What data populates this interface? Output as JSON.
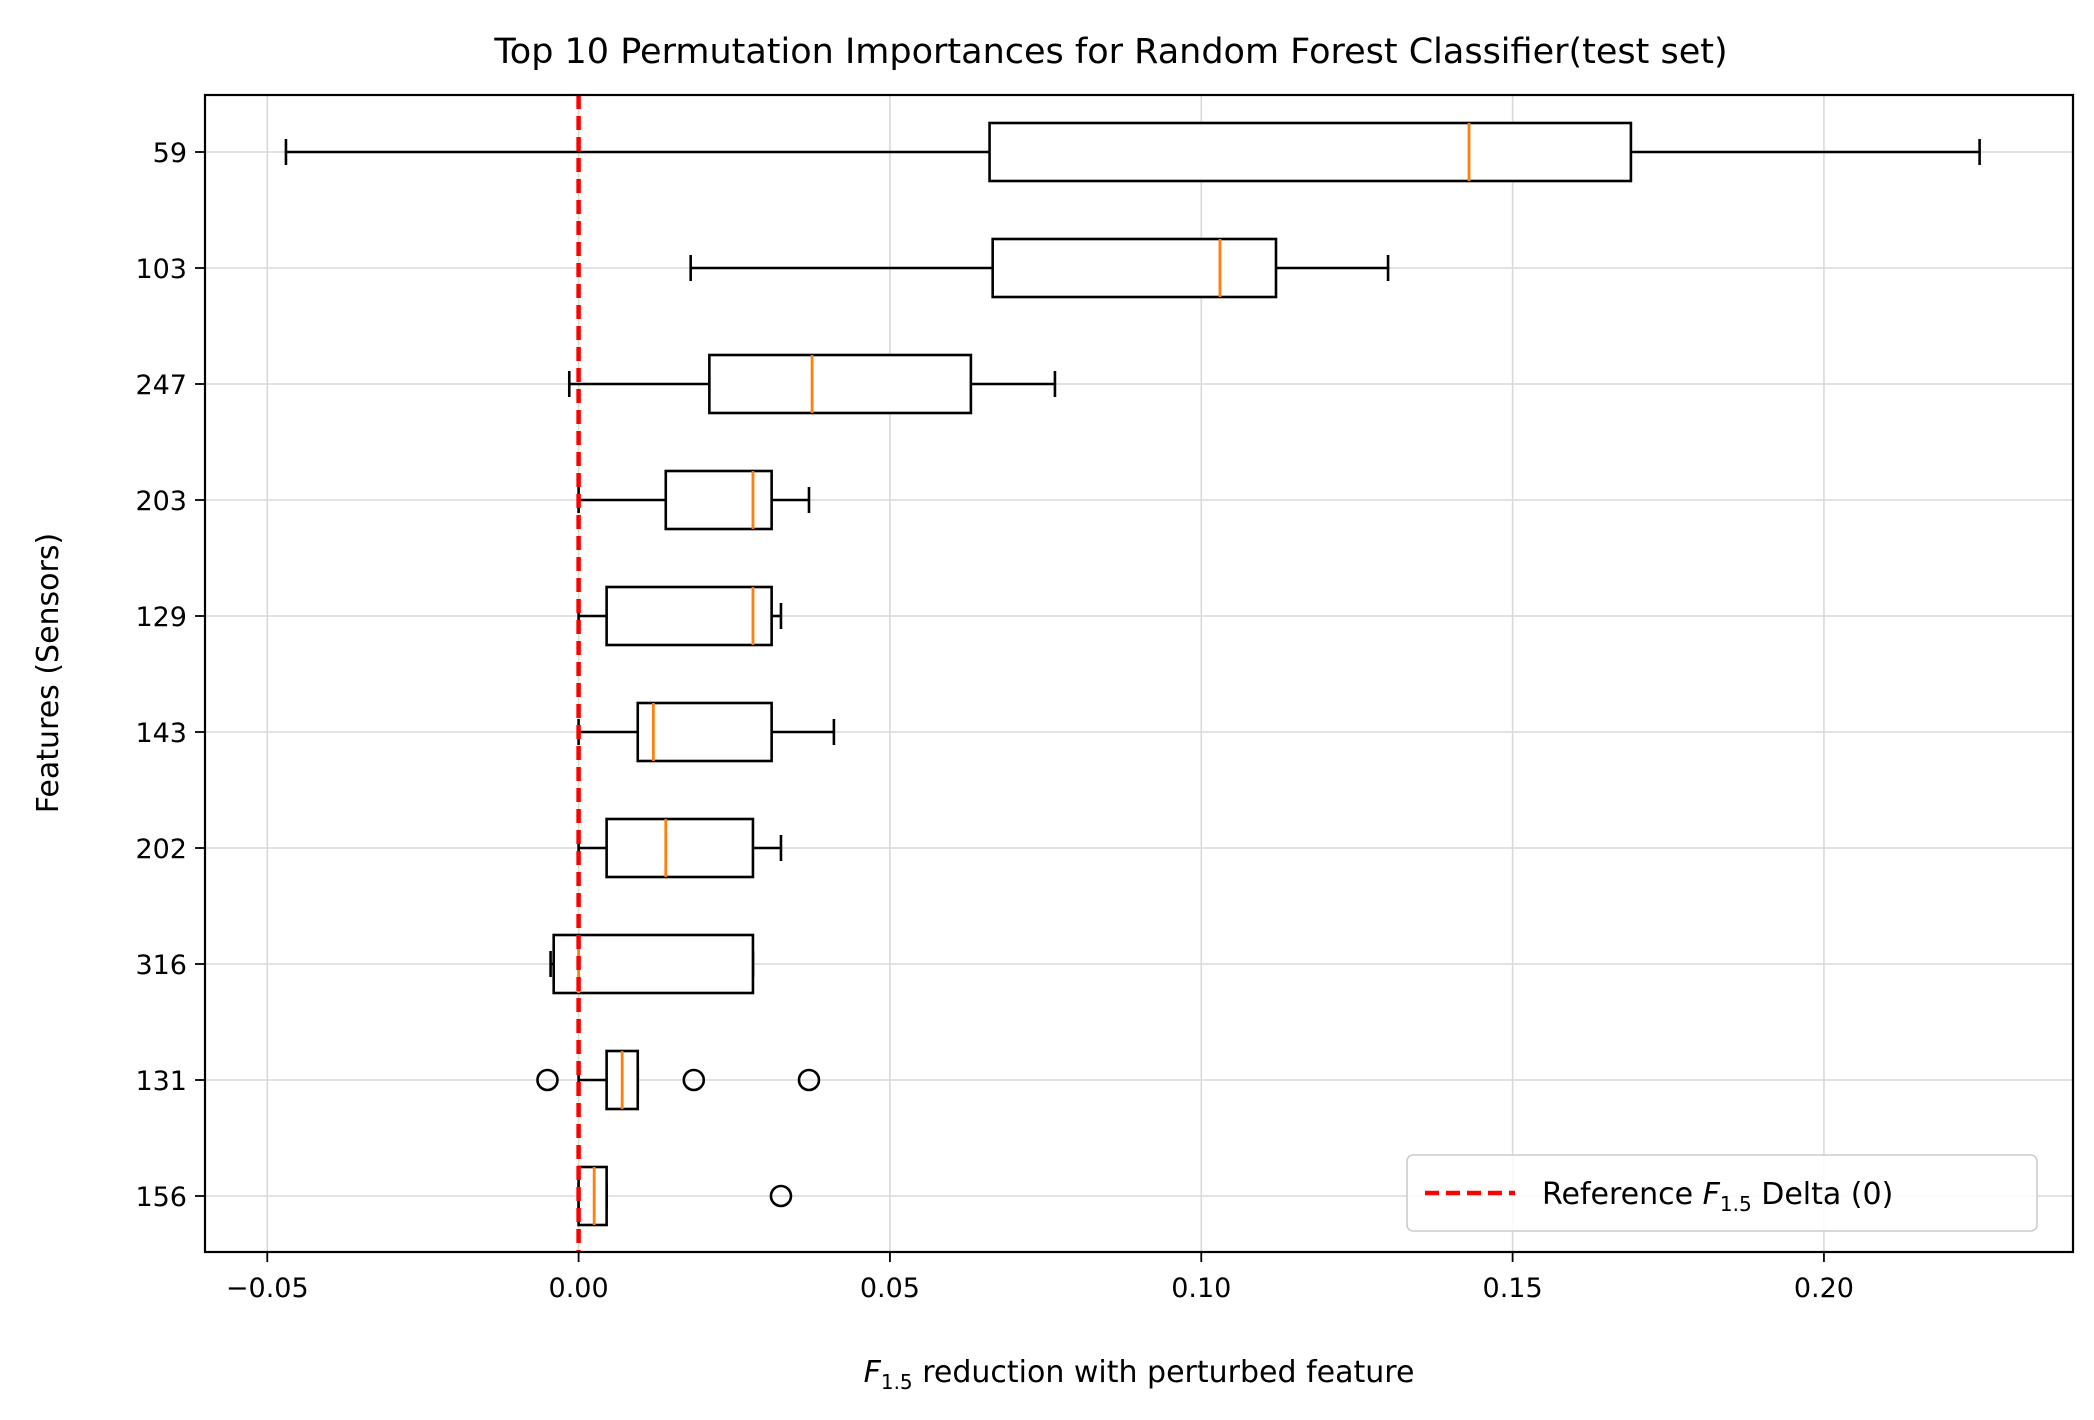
{
  "chart_data": {
    "type": "boxplot",
    "title": "Top 10 Permutation Importances for Random Forest Classifier(test set)",
    "xlabel": {
      "prefix": "F",
      "sub": "1.5",
      "suffix": " reduction with perturbed feature"
    },
    "ylabel": "Features (Sensors)",
    "xlim": [
      -0.06,
      0.24
    ],
    "xticks": [
      -0.05,
      0.0,
      0.05,
      0.1,
      0.15,
      0.2
    ],
    "xtick_labels": [
      "−0.05",
      "0.00",
      "0.05",
      "0.10",
      "0.15",
      "0.20"
    ],
    "grid": true,
    "reference_line": {
      "x": 0,
      "color": "#ff0000",
      "style": "dashed"
    },
    "legend": {
      "position": "lower-right",
      "entry": {
        "prefix": "Reference ",
        "italic": "F",
        "sub": "1.5",
        "suffix": " Delta (0)"
      }
    },
    "categories": [
      "59",
      "103",
      "247",
      "203",
      "129",
      "143",
      "202",
      "316",
      "131",
      "156"
    ],
    "boxes": [
      {
        "label": "59",
        "whislo": -0.047,
        "q1": 0.066,
        "med": 0.143,
        "q3": 0.169,
        "whishi": 0.225,
        "fliers": []
      },
      {
        "label": "103",
        "whislo": 0.018,
        "q1": 0.0665,
        "med": 0.103,
        "q3": 0.112,
        "whishi": 0.13,
        "fliers": []
      },
      {
        "label": "247",
        "whislo": -0.0015,
        "q1": 0.021,
        "med": 0.0375,
        "q3": 0.063,
        "whishi": 0.0765,
        "fliers": []
      },
      {
        "label": "203",
        "whislo": 0.0,
        "q1": 0.014,
        "med": 0.028,
        "q3": 0.031,
        "whishi": 0.037,
        "fliers": []
      },
      {
        "label": "129",
        "whislo": 0.0,
        "q1": 0.0045,
        "med": 0.028,
        "q3": 0.031,
        "whishi": 0.0325,
        "fliers": []
      },
      {
        "label": "143",
        "whislo": 0.0,
        "q1": 0.0095,
        "med": 0.012,
        "q3": 0.031,
        "whishi": 0.041,
        "fliers": []
      },
      {
        "label": "202",
        "whislo": 0.0,
        "q1": 0.0045,
        "med": 0.014,
        "q3": 0.028,
        "whishi": 0.0325,
        "fliers": []
      },
      {
        "label": "316",
        "whislo": -0.0045,
        "q1": -0.004,
        "med": 0.0,
        "q3": 0.028,
        "whishi": 0.028,
        "fliers": []
      },
      {
        "label": "131",
        "whislo": 0.0,
        "q1": 0.0045,
        "med": 0.007,
        "q3": 0.0095,
        "whishi": 0.0095,
        "fliers": [
          -0.005,
          0.0185,
          0.037
        ]
      },
      {
        "label": "156",
        "whislo": 0.0,
        "q1": 0.0,
        "med": 0.0025,
        "q3": 0.0045,
        "whishi": 0.0045,
        "fliers": [
          0.0325
        ]
      }
    ]
  }
}
